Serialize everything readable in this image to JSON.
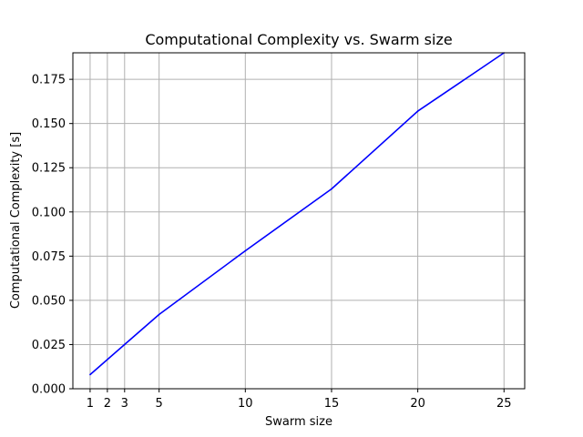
{
  "chart_data": {
    "type": "line",
    "title": "Computational Complexity vs. Swarm size",
    "xlabel": "Swarm size",
    "ylabel": "Computational Complexity [s]",
    "x_ticks": [
      1,
      2,
      3,
      5,
      10,
      15,
      20,
      25
    ],
    "y_ticks": [
      "0.000",
      "0.025",
      "0.050",
      "0.075",
      "0.100",
      "0.125",
      "0.150",
      "0.175"
    ],
    "xlim": [
      0,
      26.2
    ],
    "ylim": [
      0,
      0.19
    ],
    "grid": true,
    "series": [
      {
        "color": "#0000ff",
        "x": [
          1,
          3,
          5,
          10,
          15,
          20,
          25
        ],
        "y": [
          0.008,
          0.025,
          0.042,
          0.078,
          0.113,
          0.157,
          0.19
        ]
      }
    ]
  }
}
